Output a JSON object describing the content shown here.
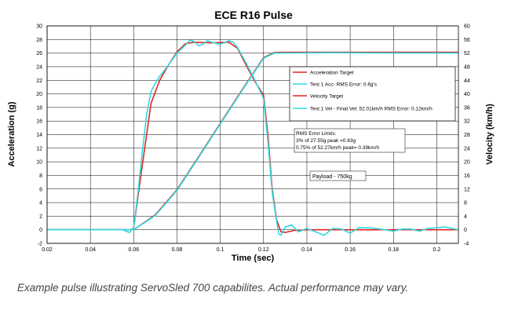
{
  "caption": "Example pulse illustrating ServoSled 700 capabilites. Actual performance may vary.",
  "colors": {
    "red": "#e0261f",
    "cyan": "#30d8e0",
    "grid": "#000000",
    "text": "#000000"
  },
  "chart_data": {
    "type": "line",
    "title": "ECE R16 Pulse",
    "xlabel": "Time (sec)",
    "ylabel": "Acceleration (g)",
    "y2label": "Velocity (km/h)",
    "xlim": [
      0.02,
      0.21
    ],
    "ylim": [
      -2,
      30
    ],
    "y2lim": [
      -4,
      60
    ],
    "grid": true,
    "legend_position": "top-right",
    "x_ticks": [
      "0.02",
      "0.04",
      "0.06",
      "0.08",
      "0.1",
      "0.12",
      "0.14",
      "0.16",
      "0.18",
      "0.2"
    ],
    "x_tick_values": [
      0.02,
      0.04,
      0.06,
      0.08,
      0.1,
      0.12,
      0.14,
      0.16,
      0.18,
      0.2
    ],
    "y_ticks": [
      "-2",
      "0",
      "2",
      "4",
      "6",
      "8",
      "10",
      "12",
      "14",
      "16",
      "18",
      "20",
      "22",
      "24",
      "26",
      "28",
      "30"
    ],
    "y_tick_values": [
      -2,
      0,
      2,
      4,
      6,
      8,
      10,
      12,
      14,
      16,
      18,
      20,
      22,
      24,
      26,
      28,
      30
    ],
    "y2_ticks": [
      "-4",
      "0",
      "4",
      "8",
      "12",
      "16",
      "20",
      "24",
      "28",
      "32",
      "36",
      "40",
      "44",
      "48",
      "52",
      "56",
      "60"
    ],
    "y2_tick_values": [
      -4,
      0,
      4,
      8,
      12,
      16,
      20,
      24,
      28,
      32,
      36,
      40,
      44,
      48,
      52,
      56,
      60
    ],
    "series": [
      {
        "name": "Acceleration Target",
        "color": "#e0261f",
        "axis": "left",
        "x": [
          0.02,
          0.059,
          0.06,
          0.064,
          0.068,
          0.072,
          0.076,
          0.08,
          0.084,
          0.088,
          0.096,
          0.104,
          0.108,
          0.112,
          0.116,
          0.12,
          0.122,
          0.124,
          0.126,
          0.128,
          0.13,
          0.134,
          0.14,
          0.16,
          0.18,
          0.21
        ],
        "y": [
          0,
          0,
          0.3,
          9.5,
          18.6,
          22,
          24.2,
          26.2,
          27.4,
          27.6,
          27.5,
          27.6,
          26.7,
          24.2,
          21.8,
          19.8,
          14,
          6,
          1.5,
          -0.3,
          -0.4,
          -0.1,
          0,
          0,
          0,
          0
        ]
      },
      {
        "name": "Test 1 Acc- RMS Error: 0.6g's",
        "color": "#30d8e0",
        "axis": "left",
        "x": [
          0.02,
          0.055,
          0.058,
          0.06,
          0.062,
          0.064,
          0.066,
          0.068,
          0.07,
          0.072,
          0.076,
          0.08,
          0.084,
          0.086,
          0.088,
          0.09,
          0.092,
          0.094,
          0.096,
          0.1,
          0.104,
          0.106,
          0.108,
          0.112,
          0.116,
          0.12,
          0.122,
          0.124,
          0.126,
          0.127,
          0.128,
          0.13,
          0.133,
          0.136,
          0.14,
          0.144,
          0.148,
          0.152,
          0.156,
          0.16,
          0.164,
          0.168,
          0.172,
          0.176,
          0.18,
          0.184,
          0.188,
          0.192,
          0.196,
          0.2,
          0.204,
          0.21
        ],
        "y": [
          0,
          0,
          -0.4,
          0.3,
          5.5,
          11.5,
          17,
          20.3,
          21.6,
          22.6,
          24.2,
          26,
          27.2,
          27.9,
          27.7,
          27.1,
          27.3,
          27.8,
          27.6,
          27.3,
          27.8,
          27.6,
          26.8,
          24.5,
          22,
          19.3,
          13,
          5.5,
          1.3,
          -0.6,
          -0.8,
          0.4,
          0.7,
          -0.3,
          0.2,
          -0.3,
          -0.8,
          0.2,
          0.1,
          -0.5,
          0.3,
          0.3,
          0.2,
          0,
          -0.2,
          0.1,
          0.1,
          -0.2,
          0.2,
          0.3,
          0.4,
          0
        ]
      },
      {
        "name": "Velocity Target",
        "color": "#e0261f",
        "axis": "right",
        "x": [
          0.02,
          0.06,
          0.07,
          0.08,
          0.09,
          0.1,
          0.11,
          0.12,
          0.125,
          0.13,
          0.21
        ],
        "y": [
          0,
          0,
          4.4,
          11.8,
          21.5,
          31.3,
          41.1,
          50.7,
          52.2,
          52.27,
          52.27
        ]
      },
      {
        "name": "Test 1 Vel - Final Vel: 52.01km/h RMS Error: 0.12km/h",
        "color": "#30d8e0",
        "axis": "right",
        "x": [
          0.02,
          0.06,
          0.07,
          0.08,
          0.09,
          0.1,
          0.11,
          0.12,
          0.125,
          0.13,
          0.15,
          0.18,
          0.21
        ],
        "y": [
          0,
          0,
          4.2,
          11.6,
          21.3,
          31.1,
          40.9,
          50.5,
          52,
          52.01,
          52.1,
          52,
          52
        ]
      }
    ],
    "annotations": {
      "rms_title": "RMS Error Limits:",
      "rms_line1": "3% of 27.55g peak =0.83g",
      "rms_line2": "0.75% of 52.27km/h peak= 0.39km/h",
      "payload": "Payload - 750kg"
    }
  }
}
